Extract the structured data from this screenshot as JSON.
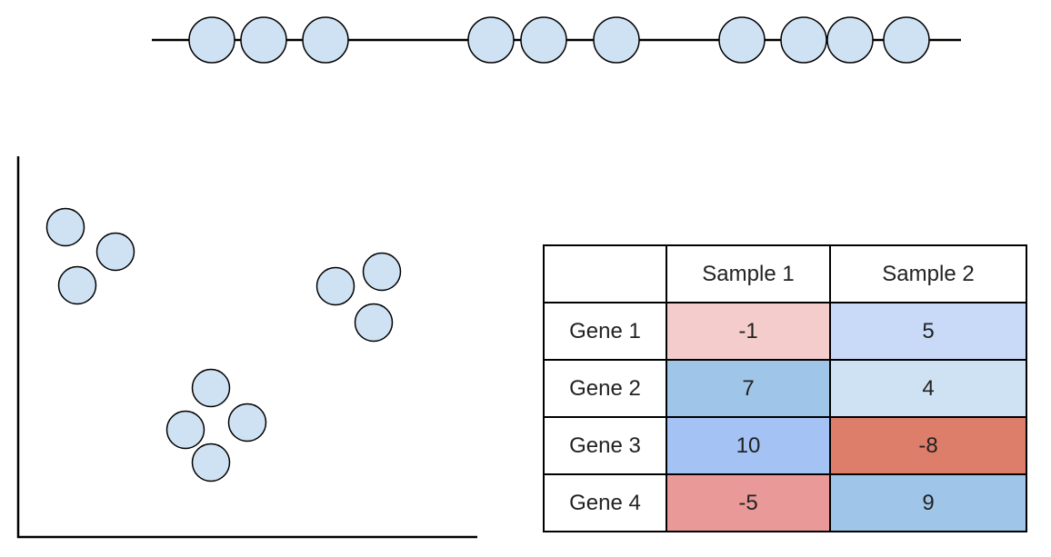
{
  "table": {
    "columns": [
      "",
      "Sample 1",
      "Sample 2"
    ],
    "rows": [
      {
        "label": "Gene 1",
        "values": [
          "-1",
          "5"
        ],
        "colors": [
          "#f4cccc",
          "#c9daf8"
        ]
      },
      {
        "label": "Gene 2",
        "values": [
          "7",
          "4"
        ],
        "colors": [
          "#9fc5e8",
          "#cfe2f3"
        ]
      },
      {
        "label": "Gene 3",
        "values": [
          "10",
          "-8"
        ],
        "colors": [
          "#a4c2f4",
          "#dd7e6b"
        ]
      },
      {
        "label": "Gene 4",
        "values": [
          "-5",
          "9"
        ],
        "colors": [
          "#ea9999",
          "#9fc5e8"
        ]
      }
    ]
  },
  "colors": {
    "node_fill": "#cfe2f3",
    "stroke": "#000000"
  }
}
